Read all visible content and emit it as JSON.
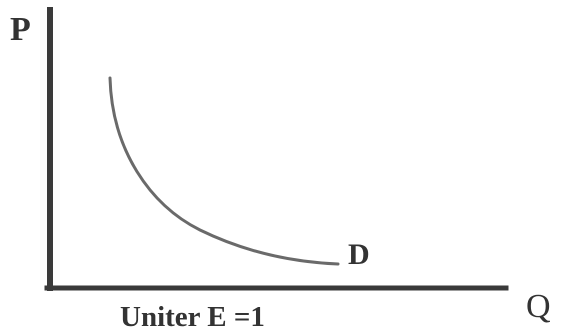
{
  "diagram": {
    "y_axis_label": "P",
    "x_axis_label": "Q",
    "curve_label": "D",
    "caption": "Uniter E =1",
    "curve_description": "unit elastic demand curve"
  },
  "colors": {
    "axis": "#3a3a3a",
    "curve": "#6a6a6a",
    "text": "#333333"
  }
}
